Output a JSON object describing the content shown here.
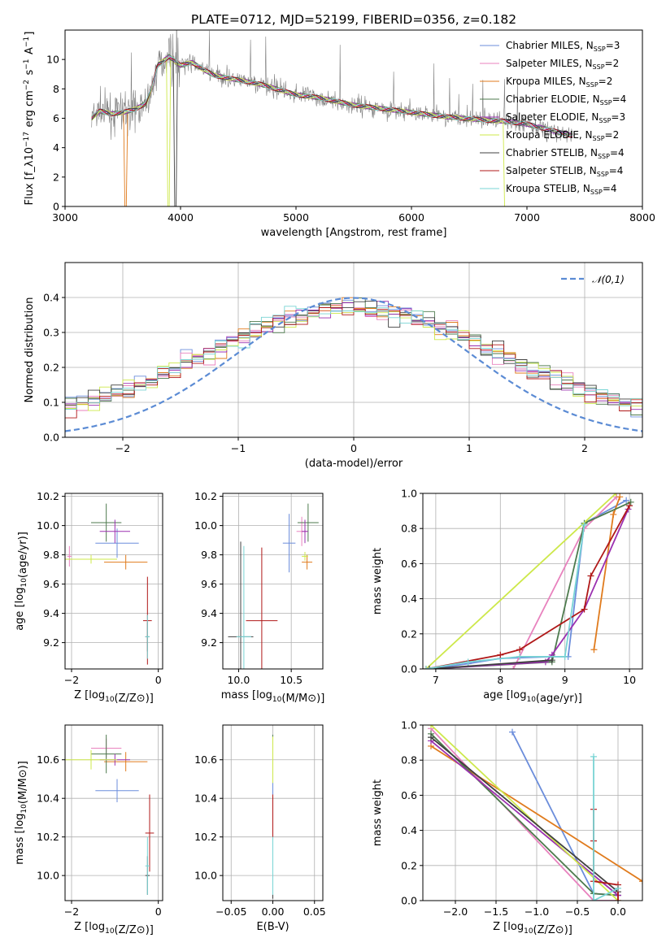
{
  "title": "PLATE=0712, MJD=52199, FIBERID=0356, z=0.182",
  "colors": {
    "Chabrier MILES": "#6b8ddb",
    "Salpeter MILES": "#e882be",
    "Kroupa MILES": "#e07b1d",
    "Chabrier ELODIE": "#4d7a4d",
    "Salpeter ELODIE": "#9b30b0",
    "Kroupa ELODIE": "#cde84a",
    "Chabrier STELIB": "#404040",
    "Salpeter STELIB": "#b01818",
    "Kroupa STELIB": "#78d4d4",
    "data": "#808080",
    "gaussian": "#5b8bd4"
  },
  "chart_data": [
    {
      "id": "spectrum",
      "type": "line",
      "title": "PLATE=0712, MJD=52199, FIBERID=0356, z=0.182",
      "xlabel": "wavelength [Angstrom, rest frame]",
      "ylabel": "Flux [f_λ10^-17 erg cm^-2 s^-1 A^-1]",
      "xlim": [
        3000,
        8000
      ],
      "ylim": [
        0,
        12
      ],
      "xticks": [
        3000,
        4000,
        5000,
        6000,
        7000,
        8000
      ],
      "yticks": [
        0,
        2,
        4,
        6,
        8,
        10
      ],
      "grid": false,
      "legend_position": "upper-right",
      "legend": [
        {
          "name": "Chabrier MILES",
          "nssp": "3"
        },
        {
          "name": "Salpeter MILES",
          "nssp": "2"
        },
        {
          "name": "Kroupa MILES",
          "nssp": "2"
        },
        {
          "name": "Chabrier ELODIE",
          "nssp": "4"
        },
        {
          "name": "Salpeter ELODIE",
          "nssp": "3"
        },
        {
          "name": "Kroupa ELODIE",
          "nssp": "2"
        },
        {
          "name": "Chabrier STELIB",
          "nssp": "4"
        },
        {
          "name": "Salpeter STELIB",
          "nssp": "4"
        },
        {
          "name": "Kroupa STELIB",
          "nssp": "4"
        }
      ],
      "continuum": {
        "x": [
          3230,
          3300,
          3400,
          3500,
          3600,
          3700,
          3750,
          3800,
          3900,
          4000,
          4100,
          4200,
          4300,
          4500,
          4700,
          5000,
          5200,
          5500,
          5800,
          6000,
          6300,
          6600,
          6800,
          7000,
          7200,
          7400
        ],
        "y": [
          6.0,
          6.5,
          6.3,
          6.4,
          6.6,
          7.0,
          8.0,
          9.6,
          10.2,
          9.6,
          9.8,
          9.3,
          8.9,
          8.6,
          8.3,
          7.6,
          7.4,
          6.9,
          6.6,
          6.4,
          6.1,
          5.9,
          5.8,
          5.6,
          5.2,
          4.8
        ]
      }
    },
    {
      "id": "residuals",
      "type": "histogram",
      "xlabel": "(data-model)/error",
      "ylabel": "Normed distribution",
      "xlim": [
        -2.5,
        2.5
      ],
      "ylim": [
        0,
        0.5
      ],
      "xticks": [
        -2,
        -1,
        0,
        1,
        2
      ],
      "yticks": [
        0.0,
        0.1,
        0.2,
        0.3,
        0.4
      ],
      "grid": true,
      "legend_position": "upper-right",
      "legend": [
        "𝒩(0,1)"
      ],
      "bin_width": 0.1,
      "gaussian": {
        "mean": 0,
        "sigma": 1
      }
    },
    {
      "id": "age-vs-Z",
      "type": "errorbar",
      "xlabel": "Z [log10(Z/Z⊙)]",
      "ylabel": "age  [log10(age/yr)]",
      "xlim": [
        -2.15,
        0.1
      ],
      "ylim": [
        9.02,
        10.22
      ],
      "xticks": [
        -2,
        0
      ],
      "yticks": [
        9.2,
        9.4,
        9.6,
        9.8,
        10.0,
        10.2
      ],
      "grid": true,
      "points": [
        {
          "model": "Chabrier MILES",
          "x": -0.95,
          "xerr": 0.5,
          "y": 9.88,
          "yerr": 0.1
        },
        {
          "model": "Salpeter MILES",
          "x": -2.05,
          "xerr": 0.05,
          "y": 9.79,
          "yerr": 0.07
        },
        {
          "model": "Kroupa MILES",
          "x": -0.75,
          "xerr": 0.5,
          "y": 9.75,
          "yerr": 0.05
        },
        {
          "model": "Chabrier ELODIE",
          "x": -1.2,
          "xerr": 0.35,
          "y": 10.02,
          "yerr": 0.13
        },
        {
          "model": "Salpeter ELODIE",
          "x": -1.0,
          "xerr": 0.35,
          "y": 9.96,
          "yerr": 0.08
        },
        {
          "model": "Kroupa ELODIE",
          "x": -1.55,
          "xerr": 0.6,
          "y": 9.77,
          "yerr": 0.03
        },
        {
          "model": "Chabrier STELIB",
          "x": -0.25,
          "xerr": 0.05,
          "y": 9.24,
          "yerr": 0.1
        },
        {
          "model": "Salpeter STELIB",
          "x": -0.25,
          "xerr": 0.1,
          "y": 9.35,
          "yerr": 0.3
        },
        {
          "model": "Kroupa STELIB",
          "x": -0.25,
          "xerr": 0.05,
          "y": 9.24,
          "yerr": 0.15
        }
      ]
    },
    {
      "id": "age-vs-mass",
      "type": "errorbar",
      "xlabel": "mass [log10(M/M⊙)]",
      "ylabel": "",
      "xlim": [
        9.85,
        10.8
      ],
      "ylim": [
        9.02,
        10.22
      ],
      "xticks": [
        10.0,
        10.5
      ],
      "yticks": [
        9.2,
        9.4,
        9.6,
        9.8,
        10.0,
        10.2
      ],
      "grid": true,
      "points": [
        {
          "model": "Chabrier MILES",
          "x": 10.48,
          "xerr": 0.06,
          "y": 9.88,
          "yerr": 0.2
        },
        {
          "model": "Salpeter MILES",
          "x": 10.6,
          "xerr": 0.05,
          "y": 9.96,
          "yerr": 0.1
        },
        {
          "model": "Kroupa MILES",
          "x": 10.65,
          "xerr": 0.05,
          "y": 9.75,
          "yerr": 0.05
        },
        {
          "model": "Chabrier ELODIE",
          "x": 10.66,
          "xerr": 0.1,
          "y": 10.02,
          "yerr": 0.13
        },
        {
          "model": "Salpeter ELODIE",
          "x": 10.63,
          "xerr": 0.03,
          "y": 9.96,
          "yerr": 0.08
        },
        {
          "model": "Kroupa ELODIE",
          "x": 10.63,
          "xerr": 0.03,
          "y": 9.79,
          "yerr": 0.03
        },
        {
          "model": "Chabrier STELIB",
          "x": 10.02,
          "xerr": 0.12,
          "y": 9.24,
          "yerr": 0.65
        },
        {
          "model": "Salpeter STELIB",
          "x": 10.22,
          "xerr": 0.15,
          "y": 9.35,
          "yerr": 0.5
        },
        {
          "model": "Kroupa STELIB",
          "x": 10.05,
          "xerr": 0.07,
          "y": 9.24,
          "yerr": 0.62
        }
      ]
    },
    {
      "id": "cumulative-age",
      "type": "line",
      "xlabel": "age  [log10(age/yr)]",
      "ylabel": "mass weight",
      "xlim": [
        6.8,
        10.2
      ],
      "ylim": [
        0,
        1.0
      ],
      "xticks": [
        7,
        8,
        9,
        10
      ],
      "yticks": [
        0.0,
        0.2,
        0.4,
        0.6,
        0.8,
        1.0
      ],
      "grid": true,
      "series": [
        {
          "model": "Chabrier MILES",
          "x": [
            6.9,
            7.5,
            8.0,
            8.8,
            9.05,
            9.3,
            9.95
          ],
          "y": [
            0.0,
            0.03,
            0.06,
            0.07,
            0.07,
            0.83,
            0.96
          ]
        },
        {
          "model": "Salpeter MILES",
          "x": [
            8.2,
            9.3,
            9.8
          ],
          "y": [
            0.0,
            0.8,
            0.98
          ]
        },
        {
          "model": "Kroupa MILES",
          "x": [
            9.45,
            9.75,
            9.85
          ],
          "y": [
            0.11,
            0.88,
            0.98
          ]
        },
        {
          "model": "Chabrier ELODIE",
          "x": [
            6.9,
            8.8,
            9.3,
            10.02
          ],
          "y": [
            0.0,
            0.04,
            0.83,
            0.95
          ]
        },
        {
          "model": "Salpeter ELODIE",
          "x": [
            6.9,
            8.7,
            8.8,
            9.3,
            9.98
          ],
          "y": [
            0.0,
            0.04,
            0.08,
            0.34,
            0.91
          ]
        },
        {
          "model": "Kroupa ELODIE",
          "x": [
            6.85,
            9.79
          ],
          "y": [
            0.0,
            1.0
          ]
        },
        {
          "model": "Chabrier STELIB",
          "x": [
            6.9,
            8.8
          ],
          "y": [
            0.0,
            0.05
          ]
        },
        {
          "model": "Salpeter STELIB",
          "x": [
            6.85,
            8.0,
            8.3,
            9.3,
            9.4,
            10.0
          ],
          "y": [
            0.0,
            0.08,
            0.11,
            0.34,
            0.53,
            0.93
          ]
        },
        {
          "model": "Kroupa STELIB",
          "x": [
            6.85,
            7.5,
            8.3,
            9.0,
            9.3
          ],
          "y": [
            0.0,
            0.04,
            0.07,
            0.07,
            0.82
          ]
        }
      ]
    },
    {
      "id": "mass-vs-Z",
      "type": "errorbar",
      "xlabel": "Z [log10(Z/Z⊙)]",
      "ylabel": "mass [log10(M/M⊙)]",
      "xlim": [
        -2.15,
        0.1
      ],
      "ylim": [
        9.87,
        10.78
      ],
      "xticks": [
        -2,
        0
      ],
      "yticks": [
        10.0,
        10.2,
        10.4,
        10.6
      ],
      "grid": true,
      "points": [
        {
          "model": "Chabrier MILES",
          "x": -0.95,
          "xerr": 0.5,
          "y": 10.44,
          "yerr": 0.06
        },
        {
          "model": "Salpeter MILES",
          "x": -1.2,
          "xerr": 0.35,
          "y": 10.66,
          "yerr": 0.05
        },
        {
          "model": "Kroupa MILES",
          "x": -0.75,
          "xerr": 0.5,
          "y": 10.59,
          "yerr": 0.05
        },
        {
          "model": "Chabrier ELODIE",
          "x": -1.2,
          "xerr": 0.35,
          "y": 10.63,
          "yerr": 0.1
        },
        {
          "model": "Salpeter ELODIE",
          "x": -1.0,
          "xerr": 0.35,
          "y": 10.6,
          "yerr": 0.03
        },
        {
          "model": "Kroupa ELODIE",
          "x": -1.55,
          "xerr": 0.6,
          "y": 10.6,
          "yerr": 0.05
        },
        {
          "model": "Chabrier STELIB",
          "x": -0.25,
          "xerr": 0.05,
          "y": 10.0,
          "yerr": 0.1
        },
        {
          "model": "Salpeter STELIB",
          "x": -0.2,
          "xerr": 0.1,
          "y": 10.22,
          "yerr": 0.2
        },
        {
          "model": "Kroupa STELIB",
          "x": -0.25,
          "xerr": 0.05,
          "y": 10.05,
          "yerr": 0.15
        }
      ]
    },
    {
      "id": "mass-vs-EBV",
      "type": "errorbar",
      "xlabel": "E(B-V)",
      "ylabel": "",
      "xlim": [
        -0.06,
        0.06
      ],
      "ylim": [
        9.87,
        10.78
      ],
      "xticks": [
        -0.05,
        0.0,
        0.05
      ],
      "yticks": [
        10.0,
        10.2,
        10.4,
        10.6
      ],
      "grid": true,
      "points": [
        {
          "model": "Chabrier MILES",
          "x": 0,
          "xerr": 0,
          "y": 10.44,
          "yerr": 0.06
        },
        {
          "model": "Salpeter MILES",
          "x": 0,
          "xerr": 0,
          "y": 10.66,
          "yerr": 0.05
        },
        {
          "model": "Kroupa MILES",
          "x": 0,
          "xerr": 0,
          "y": 10.59,
          "yerr": 0.05
        },
        {
          "model": "Chabrier ELODIE",
          "x": 0,
          "xerr": 0,
          "y": 10.63,
          "yerr": 0.1
        },
        {
          "model": "Salpeter ELODIE",
          "x": 0,
          "xerr": 0,
          "y": 10.6,
          "yerr": 0.03
        },
        {
          "model": "Kroupa ELODIE",
          "x": 0,
          "xerr": 0,
          "y": 10.6,
          "yerr": 0.12
        },
        {
          "model": "Chabrier STELIB",
          "x": 0,
          "xerr": 0,
          "y": 10.0,
          "yerr": 0.12
        },
        {
          "model": "Salpeter STELIB",
          "x": 0,
          "xerr": 0,
          "y": 10.22,
          "yerr": 0.2
        },
        {
          "model": "Kroupa STELIB",
          "x": 0,
          "xerr": 0,
          "y": 10.05,
          "yerr": 0.15
        }
      ]
    },
    {
      "id": "cumulative-Z",
      "type": "line",
      "xlabel": "Z [log10(Z/Z⊙)]",
      "ylabel": "mass weight",
      "xlim": [
        -2.4,
        0.3
      ],
      "ylim": [
        0,
        1.0
      ],
      "xticks": [
        -2.0,
        -1.5,
        -1.0,
        -0.5,
        0.0
      ],
      "yticks": [
        0.0,
        0.2,
        0.4,
        0.6,
        0.8,
        1.0
      ],
      "grid": true,
      "series": [
        {
          "model": "Chabrier MILES",
          "x": [
            -1.3,
            -0.3,
            0.0
          ],
          "y": [
            0.96,
            0.04,
            0.03
          ]
        },
        {
          "model": "Salpeter MILES",
          "x": [
            -2.3,
            -0.3,
            0.0
          ],
          "y": [
            0.98,
            0.0,
            0.0
          ]
        },
        {
          "model": "Kroupa MILES",
          "x": [
            -2.3,
            0.3
          ],
          "y": [
            0.88,
            0.11
          ]
        },
        {
          "model": "Chabrier ELODIE",
          "x": [
            -2.3,
            -0.3,
            0.0
          ],
          "y": [
            0.95,
            0.04,
            0.03
          ]
        },
        {
          "model": "Salpeter ELODIE",
          "x": [
            -2.3,
            0.0
          ],
          "y": [
            0.91,
            0.03
          ]
        },
        {
          "model": "Kroupa ELODIE",
          "x": [
            -2.3,
            0.0
          ],
          "y": [
            1.0,
            0.0
          ]
        },
        {
          "model": "Chabrier STELIB",
          "x": [
            -2.3,
            0.0
          ],
          "y": [
            0.93,
            0.05
          ]
        },
        {
          "model": "Salpeter STELIB",
          "x": [
            -0.3,
            -0.3,
            -0.3,
            0.0,
            0.0
          ],
          "y": [
            0.52,
            0.34,
            0.11,
            0.09,
            0.0
          ]
        },
        {
          "model": "Kroupa STELIB",
          "x": [
            -0.3,
            -0.3,
            0.0
          ],
          "y": [
            0.82,
            0.0,
            0.07
          ]
        }
      ]
    }
  ]
}
